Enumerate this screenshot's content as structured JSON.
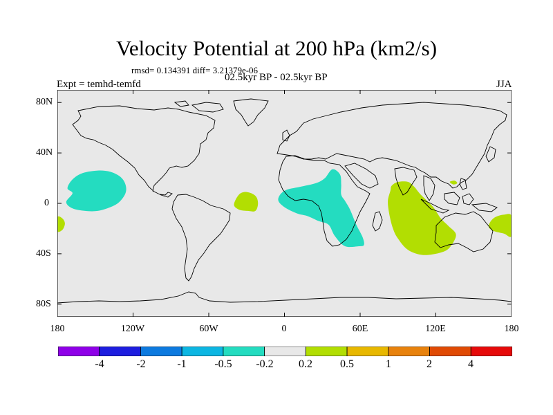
{
  "title": "Velocity Potential at 200 hPa (km2/s)",
  "rmsd_text": "rmsd= 0.134391  diff= 3.21379e-06",
  "period_text": "02.5kyr BP - 02.5kyr BP",
  "experiment_text": "Expt = temhd-temfd",
  "season": "JJA",
  "map": {
    "lat_range": [
      -90,
      90
    ],
    "lon_range": [
      -180,
      180
    ],
    "y_ticks": [
      {
        "lat": 80,
        "label": "80N"
      },
      {
        "lat": 40,
        "label": "40N"
      },
      {
        "lat": 0,
        "label": "0"
      },
      {
        "lat": -40,
        "label": "40S"
      },
      {
        "lat": -80,
        "label": "80S"
      }
    ],
    "x_ticks": [
      {
        "lon": -180,
        "label": "180"
      },
      {
        "lon": -120,
        "label": "120W"
      },
      {
        "lon": -60,
        "label": "60W"
      },
      {
        "lon": 0,
        "label": "0"
      },
      {
        "lon": 60,
        "label": "60E"
      },
      {
        "lon": 120,
        "label": "120E"
      },
      {
        "lon": 180,
        "label": "180"
      }
    ],
    "anomaly_regions": [
      {
        "name": "central-pacific-negative",
        "bin": "-0.5 to -0.2",
        "color": "#24dcc0",
        "outline": [
          [
            -168,
            8
          ],
          [
            -172,
            12
          ],
          [
            -168,
            19
          ],
          [
            -160,
            24
          ],
          [
            -148,
            26
          ],
          [
            -138,
            25
          ],
          [
            -130,
            21
          ],
          [
            -126,
            15
          ],
          [
            -126,
            8
          ],
          [
            -131,
            1
          ],
          [
            -138,
            -3
          ],
          [
            -148,
            -6
          ],
          [
            -158,
            -6
          ],
          [
            -168,
            -4
          ],
          [
            -173,
            1
          ]
        ]
      },
      {
        "name": "africa-indian-ocean-negative",
        "bin": "-0.5 to -0.2",
        "color": "#24dcc0",
        "outline": [
          [
            -5,
            3
          ],
          [
            0,
            10
          ],
          [
            12,
            13
          ],
          [
            25,
            16
          ],
          [
            32,
            20
          ],
          [
            38,
            27
          ],
          [
            44,
            23
          ],
          [
            45,
            15
          ],
          [
            45,
            7
          ],
          [
            48,
            2
          ],
          [
            52,
            -5
          ],
          [
            57,
            -17
          ],
          [
            62,
            -27
          ],
          [
            63,
            -33
          ],
          [
            59,
            -34
          ],
          [
            48,
            -34
          ],
          [
            40,
            -26
          ],
          [
            35,
            -17
          ],
          [
            27,
            -14
          ],
          [
            18,
            -10
          ],
          [
            10,
            -8
          ],
          [
            0,
            -3
          ]
        ]
      },
      {
        "name": "dateline-southwest-positive",
        "bin": "0.2 to 0.5",
        "color": "#b2de02",
        "outline": [
          [
            -180,
            -11
          ],
          [
            -176,
            -12
          ],
          [
            -174,
            -16
          ],
          [
            -176,
            -21
          ],
          [
            -180,
            -22
          ]
        ]
      },
      {
        "name": "tropical-atlantic-positive",
        "bin": "0.2 to 0.5",
        "color": "#b2de02",
        "outline": [
          [
            -40,
            -1
          ],
          [
            -36,
            7
          ],
          [
            -30,
            9
          ],
          [
            -23,
            6
          ],
          [
            -21,
            0
          ],
          [
            -23,
            -6
          ],
          [
            -29,
            -6
          ],
          [
            -36,
            -5
          ]
        ]
      },
      {
        "name": "indian-ocean-maritime-positive",
        "bin": "0.2 to 0.5",
        "color": "#b2de02",
        "outline": [
          [
            84,
            10
          ],
          [
            85,
            14
          ],
          [
            90,
            17
          ],
          [
            98,
            17
          ],
          [
            103,
            13
          ],
          [
            107,
            8
          ],
          [
            112,
            3
          ],
          [
            118,
            -3
          ],
          [
            124,
            -12
          ],
          [
            130,
            -18
          ],
          [
            136,
            -25
          ],
          [
            131,
            -35
          ],
          [
            124,
            -39
          ],
          [
            110,
            -41
          ],
          [
            98,
            -37
          ],
          [
            90,
            -28
          ],
          [
            86,
            -20
          ],
          [
            83,
            -8
          ],
          [
            82,
            2
          ]
        ]
      },
      {
        "name": "west-pacific-small-positive",
        "bin": "0.2 to 0.5",
        "color": "#b2de02",
        "outline": [
          [
            131,
            17
          ],
          [
            135,
            18
          ],
          [
            137,
            16
          ],
          [
            134,
            15
          ]
        ]
      },
      {
        "name": "dateline-southeast-positive",
        "bin": "0.2 to 0.5",
        "color": "#b2de02",
        "outline": [
          [
            163,
            -15
          ],
          [
            167,
            -11
          ],
          [
            174,
            -9
          ],
          [
            180,
            -10
          ],
          [
            180,
            -26
          ],
          [
            174,
            -24
          ],
          [
            166,
            -22
          ],
          [
            162,
            -19
          ]
        ]
      }
    ]
  },
  "colorbar": {
    "colors": [
      "#8f00e8",
      "#1d1ddf",
      "#0d7adf",
      "#0cb6e2",
      "#24dcc0",
      "#e8e8e8",
      "#b2de02",
      "#e8b800",
      "#e8820d",
      "#e04a04",
      "#e60a0a"
    ],
    "labels": [
      "-4",
      "-2",
      "-1",
      "-0.5",
      "-0.2",
      "0.2",
      "0.5",
      "1",
      "2",
      "4"
    ]
  }
}
